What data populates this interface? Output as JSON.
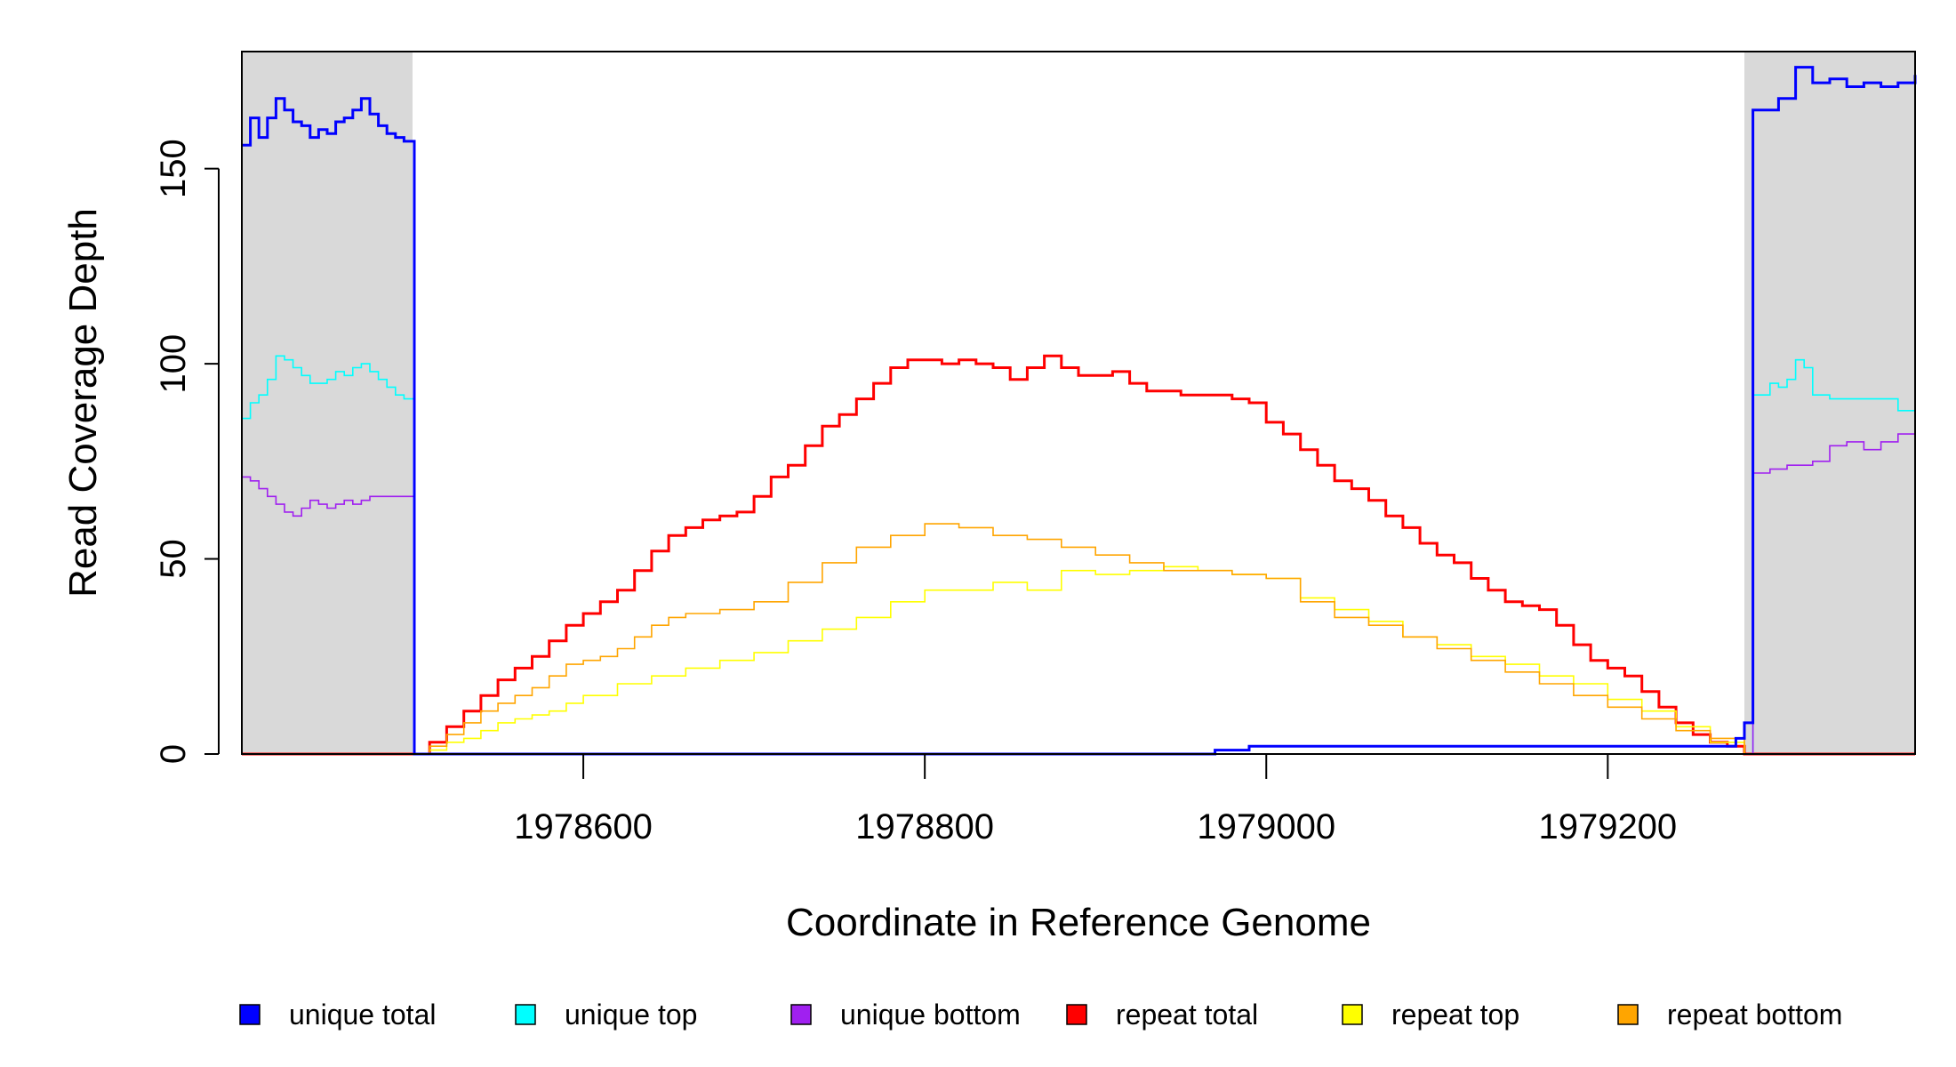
{
  "chart_data": {
    "type": "line",
    "xlabel": "Coordinate in Reference Genome",
    "ylabel": "Read Coverage Depth",
    "xlim": [
      1978400,
      1979380
    ],
    "ylim": [
      0,
      180
    ],
    "x_ticks": [
      1978600,
      1978800,
      1979000,
      1979200
    ],
    "y_ticks": [
      0,
      50,
      100,
      150
    ],
    "grid": false,
    "legend_position": "bottom",
    "shaded_regions": [
      {
        "x": [
          1978400,
          1978500
        ],
        "color": "#d9d9d9"
      },
      {
        "x": [
          1979280,
          1979380
        ],
        "color": "#d9d9d9"
      }
    ],
    "series": [
      {
        "name": "unique total",
        "color": "#0000ff",
        "x": [
          1978400,
          1978405,
          1978410,
          1978415,
          1978420,
          1978425,
          1978430,
          1978435,
          1978440,
          1978445,
          1978450,
          1978455,
          1978460,
          1978465,
          1978470,
          1978475,
          1978480,
          1978485,
          1978490,
          1978495,
          1978500,
          1978501,
          1978900,
          1978970,
          1978990,
          1979270,
          1979275,
          1979280,
          1979285,
          1979300,
          1979310,
          1979320,
          1979330,
          1979340,
          1979350,
          1979360,
          1979370,
          1979380
        ],
        "values": [
          156,
          163,
          158,
          163,
          168,
          165,
          162,
          161,
          158,
          160,
          159,
          162,
          163,
          165,
          168,
          164,
          161,
          159,
          158,
          157,
          157,
          0,
          0,
          1,
          2,
          2,
          4,
          8,
          165,
          168,
          176,
          172,
          173,
          171,
          172,
          171,
          172,
          174
        ]
      },
      {
        "name": "unique top",
        "color": "#00ffff",
        "x": [
          1978400,
          1978405,
          1978410,
          1978415,
          1978420,
          1978425,
          1978430,
          1978435,
          1978440,
          1978445,
          1978450,
          1978455,
          1978460,
          1978465,
          1978470,
          1978475,
          1978480,
          1978485,
          1978490,
          1978495,
          1978500,
          1978501,
          1979280,
          1979285,
          1979295,
          1979300,
          1979305,
          1979310,
          1979315,
          1979320,
          1979330,
          1979340,
          1979350,
          1979360,
          1979370,
          1979380
        ],
        "values": [
          86,
          90,
          92,
          96,
          102,
          101,
          99,
          97,
          95,
          95,
          96,
          98,
          97,
          99,
          100,
          98,
          96,
          94,
          92,
          91,
          91,
          0,
          0,
          92,
          95,
          94,
          96,
          101,
          99,
          92,
          91,
          91,
          91,
          91,
          88,
          89
        ]
      },
      {
        "name": "unique bottom",
        "color": "#a020f0",
        "x": [
          1978400,
          1978405,
          1978410,
          1978415,
          1978420,
          1978425,
          1978430,
          1978435,
          1978440,
          1978445,
          1978450,
          1978455,
          1978460,
          1978465,
          1978470,
          1978475,
          1978480,
          1978485,
          1978490,
          1978495,
          1978500,
          1978501,
          1979280,
          1979285,
          1979295,
          1979305,
          1979315,
          1979320,
          1979330,
          1979340,
          1979350,
          1979360,
          1979370,
          1979380
        ],
        "values": [
          71,
          70,
          68,
          66,
          64,
          62,
          61,
          63,
          65,
          64,
          63,
          64,
          65,
          64,
          65,
          66,
          66,
          66,
          66,
          66,
          66,
          0,
          0,
          72,
          73,
          74,
          74,
          75,
          79,
          80,
          78,
          80,
          82,
          84
        ]
      },
      {
        "name": "repeat total",
        "color": "#ff0000",
        "x": [
          1978400,
          1978500,
          1978510,
          1978520,
          1978530,
          1978540,
          1978550,
          1978560,
          1978570,
          1978580,
          1978590,
          1978600,
          1978610,
          1978620,
          1978630,
          1978640,
          1978650,
          1978660,
          1978670,
          1978680,
          1978690,
          1978700,
          1978710,
          1978720,
          1978730,
          1978740,
          1978750,
          1978760,
          1978770,
          1978780,
          1978790,
          1978800,
          1978810,
          1978820,
          1978830,
          1978840,
          1978850,
          1978860,
          1978870,
          1978880,
          1978890,
          1978900,
          1978910,
          1978920,
          1978930,
          1978940,
          1978950,
          1978960,
          1978970,
          1978980,
          1978990,
          1979000,
          1979010,
          1979020,
          1979030,
          1979040,
          1979050,
          1979060,
          1979070,
          1979080,
          1979090,
          1979100,
          1979110,
          1979120,
          1979130,
          1979140,
          1979150,
          1979160,
          1979170,
          1979180,
          1979190,
          1979200,
          1979210,
          1979220,
          1979230,
          1979240,
          1979250,
          1979260,
          1979270,
          1979280,
          1979380
        ],
        "values": [
          0,
          0,
          3,
          7,
          11,
          15,
          19,
          22,
          25,
          29,
          33,
          36,
          39,
          42,
          47,
          52,
          56,
          58,
          60,
          61,
          62,
          66,
          71,
          74,
          79,
          84,
          87,
          91,
          95,
          99,
          101,
          101,
          100,
          101,
          100,
          99,
          96,
          99,
          102,
          99,
          97,
          97,
          98,
          95,
          93,
          93,
          92,
          92,
          92,
          91,
          90,
          85,
          82,
          78,
          74,
          70,
          68,
          65,
          61,
          58,
          54,
          51,
          49,
          45,
          42,
          39,
          38,
          37,
          33,
          28,
          24,
          22,
          20,
          16,
          12,
          8,
          5,
          3,
          2,
          0,
          0
        ]
      },
      {
        "name": "repeat top",
        "color": "#ffff00",
        "x": [
          1978400,
          1978500,
          1978510,
          1978520,
          1978530,
          1978540,
          1978550,
          1978560,
          1978570,
          1978580,
          1978590,
          1978600,
          1978620,
          1978640,
          1978660,
          1978680,
          1978700,
          1978720,
          1978740,
          1978760,
          1978780,
          1978800,
          1978820,
          1978840,
          1978860,
          1978880,
          1978900,
          1978920,
          1978940,
          1978960,
          1978980,
          1979000,
          1979020,
          1979040,
          1979060,
          1979080,
          1979100,
          1979120,
          1979140,
          1979160,
          1979180,
          1979200,
          1979220,
          1979240,
          1979260,
          1979280,
          1979380
        ],
        "values": [
          0,
          0,
          1,
          3,
          4,
          6,
          8,
          9,
          10,
          11,
          13,
          15,
          18,
          20,
          22,
          24,
          26,
          29,
          32,
          35,
          39,
          42,
          42,
          44,
          42,
          47,
          46,
          47,
          48,
          47,
          46,
          45,
          40,
          37,
          34,
          30,
          28,
          25,
          23,
          20,
          18,
          14,
          11,
          7,
          3,
          0,
          0
        ]
      },
      {
        "name": "repeat bottom",
        "color": "#ffa500",
        "x": [
          1978400,
          1978500,
          1978510,
          1978520,
          1978530,
          1978540,
          1978550,
          1978560,
          1978570,
          1978580,
          1978590,
          1978600,
          1978610,
          1978620,
          1978630,
          1978640,
          1978650,
          1978660,
          1978680,
          1978700,
          1978720,
          1978740,
          1978760,
          1978780,
          1978800,
          1978820,
          1978840,
          1978860,
          1978880,
          1978900,
          1978920,
          1978940,
          1978960,
          1978980,
          1979000,
          1979020,
          1979040,
          1979060,
          1979080,
          1979100,
          1979120,
          1979140,
          1979160,
          1979180,
          1979200,
          1979220,
          1979240,
          1979260,
          1979280,
          1979380
        ],
        "values": [
          0,
          0,
          2,
          5,
          8,
          11,
          13,
          15,
          17,
          20,
          23,
          24,
          25,
          27,
          30,
          33,
          35,
          36,
          37,
          39,
          44,
          49,
          53,
          56,
          59,
          58,
          56,
          55,
          53,
          51,
          49,
          47,
          47,
          46,
          45,
          39,
          35,
          33,
          30,
          27,
          24,
          21,
          18,
          15,
          12,
          9,
          6,
          4,
          0,
          0
        ]
      }
    ]
  }
}
